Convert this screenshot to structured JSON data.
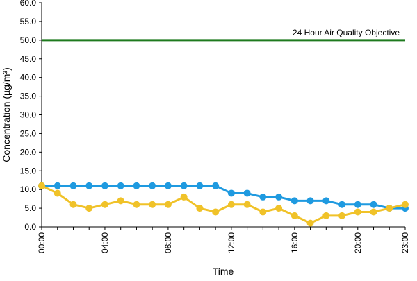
{
  "chart_data": {
    "type": "line",
    "xlabel": "Time",
    "ylabel": "Concentration (µg/m³)",
    "ylim": [
      0,
      60
    ],
    "ytick_labels": [
      "0.0",
      "5.0",
      "10.0",
      "15.0",
      "20.0",
      "25.0",
      "30.0",
      "35.0",
      "40.0",
      "45.0",
      "50.0",
      "55.0",
      "60.0"
    ],
    "xtick_labels": [
      "00:00",
      "04:00",
      "08:00",
      "12:00",
      "16:00",
      "20:00",
      "23:00"
    ],
    "xtick_hours": [
      0,
      4,
      8,
      12,
      16,
      20,
      23
    ],
    "x": [
      0,
      1,
      2,
      3,
      4,
      5,
      6,
      7,
      8,
      9,
      10,
      11,
      12,
      13,
      14,
      15,
      16,
      17,
      18,
      19,
      20,
      21,
      22,
      23
    ],
    "grid": false,
    "objective": {
      "label": "24 Hour Air Quality Objective",
      "value": 50,
      "color": "#1e7a1e"
    },
    "series": [
      {
        "color": "#1f9ae0",
        "values": [
          11,
          11,
          11,
          11,
          11,
          11,
          11,
          11,
          11,
          11,
          11,
          11,
          9,
          9,
          8,
          8,
          7,
          7,
          7,
          6,
          6,
          6,
          5,
          5
        ]
      },
      {
        "color": "#f0c229",
        "values": [
          11,
          9,
          6,
          5,
          6,
          7,
          6,
          6,
          6,
          8,
          5,
          4,
          6,
          6,
          4,
          5,
          3,
          1,
          3,
          3,
          4,
          4,
          5,
          6
        ]
      }
    ]
  }
}
